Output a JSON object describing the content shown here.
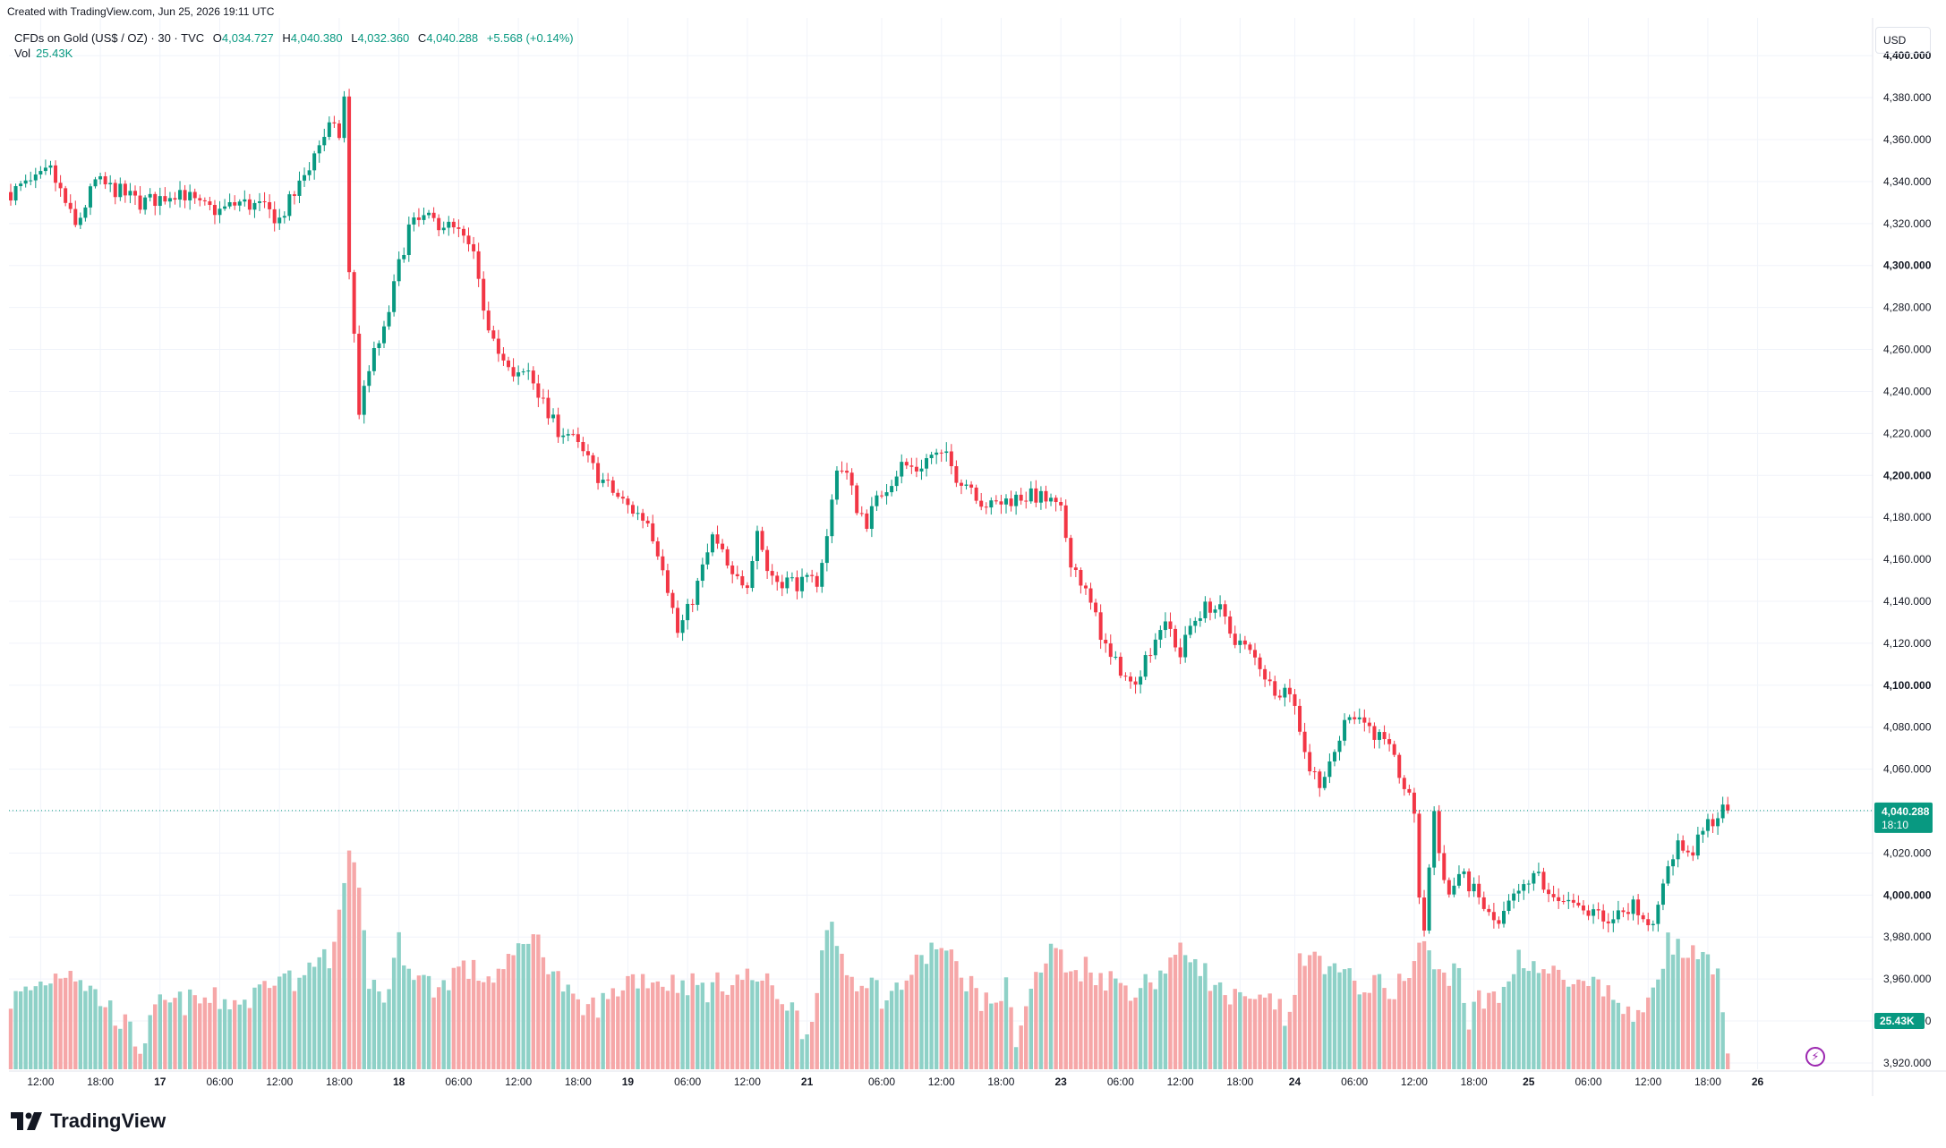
{
  "header": {
    "created_text": "Created with TradingView.com, Jun 25, 2026 19:11 UTC"
  },
  "legend": {
    "symbol": "CFDs on Gold (US$ / OZ) · 30 · TVC",
    "open_label": "O",
    "open": "4,034.727",
    "high_label": "H",
    "high": "4,040.380",
    "low_label": "L",
    "low": "4,032.360",
    "close_label": "C",
    "close": "4,040.288",
    "change": "+5.568 (+0.14%)",
    "vol_label": "Vol",
    "vol": "25.43K"
  },
  "currency_button": "USD",
  "price_badge": {
    "price": "4,040.288",
    "countdown": "18:10"
  },
  "vol_badge": "25.43K",
  "brand": "TradingView",
  "colors": {
    "up": "#089981",
    "down": "#f23645",
    "up_vol": "#8ed1c7",
    "down_vol": "#f6a7a8",
    "grid": "#f0f3fa"
  },
  "chart_data": {
    "type": "candlestick",
    "title": "CFDs on Gold (US$ / OZ) · 30 · TVC",
    "y_ticks": [
      3920,
      3940,
      3960,
      3980,
      4000,
      4020,
      4040,
      4060,
      4080,
      4100,
      4120,
      4140,
      4160,
      4180,
      4200,
      4220,
      4240,
      4260,
      4280,
      4300,
      4320,
      4340,
      4360,
      4380,
      4400
    ],
    "y_tick_labels": [
      "3,920.000",
      "3,940.000",
      "3,960.000",
      "3,980.000",
      "4,000.000",
      "4,020.000",
      "4,040.000",
      "4,060.000",
      "4,080.000",
      "4,100.000",
      "4,120.000",
      "4,140.000",
      "4,160.000",
      "4,180.000",
      "4,200.000",
      "4,220.000",
      "4,240.000",
      "4,260.000",
      "4,280.000",
      "4,300.000",
      "4,320.000",
      "4,340.000",
      "4,360.000",
      "4,380.000",
      "4,400.000"
    ],
    "major_y_ticks": [
      4000,
      4100,
      4200,
      4300,
      4400
    ],
    "ylim": [
      3917,
      4418
    ],
    "x_labels": [
      {
        "bar": 6,
        "label": "12:00"
      },
      {
        "bar": 18,
        "label": "18:00"
      },
      {
        "bar": 30,
        "label": "17",
        "major": true
      },
      {
        "bar": 42,
        "label": "06:00"
      },
      {
        "bar": 54,
        "label": "12:00"
      },
      {
        "bar": 66,
        "label": "18:00"
      },
      {
        "bar": 78,
        "label": "18",
        "major": true
      },
      {
        "bar": 90,
        "label": "06:00"
      },
      {
        "bar": 102,
        "label": "12:00"
      },
      {
        "bar": 114,
        "label": "18:00"
      },
      {
        "bar": 124,
        "label": "19",
        "major": true
      },
      {
        "bar": 136,
        "label": "06:00"
      },
      {
        "bar": 148,
        "label": "12:00"
      },
      {
        "bar": 160,
        "label": "21",
        "major": true
      },
      {
        "bar": 175,
        "label": "06:00"
      },
      {
        "bar": 187,
        "label": "12:00"
      },
      {
        "bar": 199,
        "label": "18:00"
      },
      {
        "bar": 211,
        "label": "23",
        "major": true
      },
      {
        "bar": 223,
        "label": "06:00"
      },
      {
        "bar": 235,
        "label": "12:00"
      },
      {
        "bar": 247,
        "label": "18:00"
      },
      {
        "bar": 258,
        "label": "24",
        "major": true
      },
      {
        "bar": 270,
        "label": "06:00"
      },
      {
        "bar": 282,
        "label": "12:00"
      },
      {
        "bar": 294,
        "label": "18:00"
      },
      {
        "bar": 305,
        "label": "25",
        "major": true
      },
      {
        "bar": 317,
        "label": "06:00"
      },
      {
        "bar": 329,
        "label": "12:00"
      },
      {
        "bar": 341,
        "label": "18:00"
      },
      {
        "bar": 351,
        "label": "26",
        "major": true
      }
    ],
    "current_price": 4040.288,
    "price_path": [
      [
        0,
        4335
      ],
      [
        5,
        4340
      ],
      [
        8,
        4345
      ],
      [
        10,
        4335
      ],
      [
        13,
        4318
      ],
      [
        17,
        4340
      ],
      [
        22,
        4335
      ],
      [
        26,
        4330
      ],
      [
        30,
        4332
      ],
      [
        34,
        4336
      ],
      [
        38,
        4328
      ],
      [
        42,
        4326
      ],
      [
        46,
        4330
      ],
      [
        50,
        4328
      ],
      [
        54,
        4322
      ],
      [
        58,
        4338
      ],
      [
        62,
        4358
      ],
      [
        64,
        4366
      ],
      [
        66,
        4362
      ],
      [
        67,
        4380
      ],
      [
        68,
        4295
      ],
      [
        69,
        4268
      ],
      [
        70,
        4230
      ],
      [
        72,
        4252
      ],
      [
        75,
        4268
      ],
      [
        78,
        4300
      ],
      [
        80,
        4318
      ],
      [
        83,
        4322
      ],
      [
        87,
        4320
      ],
      [
        90,
        4315
      ],
      [
        93,
        4305
      ],
      [
        95,
        4275
      ],
      [
        97,
        4268
      ],
      [
        99,
        4255
      ],
      [
        101,
        4245
      ],
      [
        104,
        4250
      ],
      [
        106,
        4240
      ],
      [
        108,
        4228
      ],
      [
        110,
        4222
      ],
      [
        112,
        4220
      ],
      [
        115,
        4210
      ],
      [
        118,
        4200
      ],
      [
        121,
        4192
      ],
      [
        124,
        4185
      ],
      [
        128,
        4178
      ],
      [
        131,
        4158
      ],
      [
        134,
        4125
      ],
      [
        136,
        4135
      ],
      [
        138,
        4148
      ],
      [
        141,
        4170
      ],
      [
        143,
        4162
      ],
      [
        145,
        4150
      ],
      [
        148,
        4150
      ],
      [
        150,
        4175
      ],
      [
        152,
        4155
      ],
      [
        154,
        4150
      ],
      [
        156,
        4150
      ],
      [
        159,
        4148
      ],
      [
        162,
        4150
      ],
      [
        164,
        4170
      ],
      [
        166,
        4205
      ],
      [
        168,
        4200
      ],
      [
        170,
        4185
      ],
      [
        172,
        4178
      ],
      [
        175,
        4192
      ],
      [
        177,
        4198
      ],
      [
        179,
        4205
      ],
      [
        182,
        4203
      ],
      [
        185,
        4210
      ],
      [
        188,
        4208
      ],
      [
        190,
        4200
      ],
      [
        193,
        4195
      ],
      [
        195,
        4188
      ],
      [
        197,
        4185
      ],
      [
        200,
        4188
      ],
      [
        203,
        4190
      ],
      [
        206,
        4190
      ],
      [
        209,
        4187
      ],
      [
        211,
        4182
      ],
      [
        213,
        4160
      ],
      [
        215,
        4150
      ],
      [
        217,
        4138
      ],
      [
        219,
        4125
      ],
      [
        221,
        4112
      ],
      [
        223,
        4108
      ],
      [
        225,
        4100
      ],
      [
        227,
        4108
      ],
      [
        229,
        4118
      ],
      [
        231,
        4128
      ],
      [
        233,
        4126
      ],
      [
        235,
        4114
      ],
      [
        237,
        4128
      ],
      [
        239,
        4135
      ],
      [
        241,
        4138
      ],
      [
        243,
        4135
      ],
      [
        245,
        4125
      ],
      [
        247,
        4120
      ],
      [
        249,
        4115
      ],
      [
        251,
        4110
      ],
      [
        253,
        4100
      ],
      [
        255,
        4098
      ],
      [
        257,
        4098
      ],
      [
        259,
        4080
      ],
      [
        261,
        4060
      ],
      [
        263,
        4055
      ],
      [
        265,
        4060
      ],
      [
        267,
        4075
      ],
      [
        269,
        4088
      ],
      [
        271,
        4085
      ],
      [
        273,
        4080
      ],
      [
        275,
        4075
      ],
      [
        277,
        4068
      ],
      [
        279,
        4058
      ],
      [
        281,
        4045
      ],
      [
        282,
        4040
      ],
      [
        283,
        4000
      ],
      [
        284,
        3980
      ],
      [
        285,
        4015
      ],
      [
        286,
        4040
      ],
      [
        287,
        4020
      ],
      [
        289,
        4000
      ],
      [
        291,
        4010
      ],
      [
        293,
        4005
      ],
      [
        295,
        3998
      ],
      [
        297,
        3990
      ],
      [
        299,
        3985
      ],
      [
        301,
        3995
      ],
      [
        303,
        4000
      ],
      [
        305,
        4005
      ],
      [
        307,
        4010
      ],
      [
        309,
        3998
      ],
      [
        311,
        4000
      ],
      [
        313,
        3996
      ],
      [
        315,
        3992
      ],
      [
        317,
        3990
      ],
      [
        319,
        3995
      ],
      [
        321,
        3985
      ],
      [
        323,
        3992
      ],
      [
        325,
        3995
      ],
      [
        327,
        3994
      ],
      [
        329,
        3988
      ],
      [
        331,
        3992
      ],
      [
        333,
        4015
      ],
      [
        335,
        4025
      ],
      [
        337,
        4018
      ],
      [
        339,
        4025
      ],
      [
        341,
        4034
      ],
      [
        343,
        4038
      ],
      [
        344,
        4040
      ],
      [
        345,
        4040.288
      ]
    ],
    "last_bar": 345,
    "volume_path": [
      [
        0,
        30
      ],
      [
        12,
        45
      ],
      [
        16,
        35
      ],
      [
        22,
        22
      ],
      [
        26,
        10
      ],
      [
        30,
        28
      ],
      [
        38,
        30
      ],
      [
        48,
        30
      ],
      [
        54,
        45
      ],
      [
        58,
        35
      ],
      [
        62,
        55
      ],
      [
        64,
        40
      ],
      [
        66,
        70
      ],
      [
        68,
        90
      ],
      [
        69,
        85
      ],
      [
        70,
        75
      ],
      [
        72,
        40
      ],
      [
        75,
        30
      ],
      [
        78,
        55
      ],
      [
        82,
        40
      ],
      [
        86,
        35
      ],
      [
        90,
        45
      ],
      [
        96,
        40
      ],
      [
        100,
        45
      ],
      [
        104,
        60
      ],
      [
        106,
        55
      ],
      [
        110,
        40
      ],
      [
        114,
        25
      ],
      [
        120,
        30
      ],
      [
        124,
        40
      ],
      [
        128,
        40
      ],
      [
        132,
        38
      ],
      [
        136,
        38
      ],
      [
        140,
        35
      ],
      [
        146,
        40
      ],
      [
        150,
        40
      ],
      [
        156,
        30
      ],
      [
        160,
        15
      ],
      [
        163,
        50
      ],
      [
        165,
        60
      ],
      [
        167,
        50
      ],
      [
        169,
        40
      ],
      [
        172,
        40
      ],
      [
        176,
        30
      ],
      [
        180,
        40
      ],
      [
        186,
        55
      ],
      [
        188,
        50
      ],
      [
        192,
        40
      ],
      [
        196,
        28
      ],
      [
        200,
        35
      ],
      [
        202,
        15
      ],
      [
        206,
        40
      ],
      [
        210,
        55
      ],
      [
        212,
        42
      ],
      [
        216,
        45
      ],
      [
        220,
        40
      ],
      [
        226,
        35
      ],
      [
        230,
        40
      ],
      [
        234,
        50
      ],
      [
        238,
        50
      ],
      [
        242,
        35
      ],
      [
        246,
        30
      ],
      [
        250,
        28
      ],
      [
        254,
        30
      ],
      [
        256,
        20
      ],
      [
        259,
        45
      ],
      [
        263,
        50
      ],
      [
        267,
        40
      ],
      [
        271,
        38
      ],
      [
        277,
        35
      ],
      [
        281,
        40
      ],
      [
        283,
        55
      ],
      [
        285,
        50
      ],
      [
        287,
        40
      ],
      [
        291,
        45
      ],
      [
        293,
        20
      ],
      [
        295,
        30
      ],
      [
        299,
        30
      ],
      [
        303,
        50
      ],
      [
        307,
        45
      ],
      [
        311,
        40
      ],
      [
        315,
        35
      ],
      [
        319,
        35
      ],
      [
        323,
        30
      ],
      [
        327,
        20
      ],
      [
        331,
        45
      ],
      [
        333,
        55
      ],
      [
        337,
        50
      ],
      [
        341,
        45
      ],
      [
        343,
        40
      ],
      [
        345,
        12
      ]
    ]
  }
}
